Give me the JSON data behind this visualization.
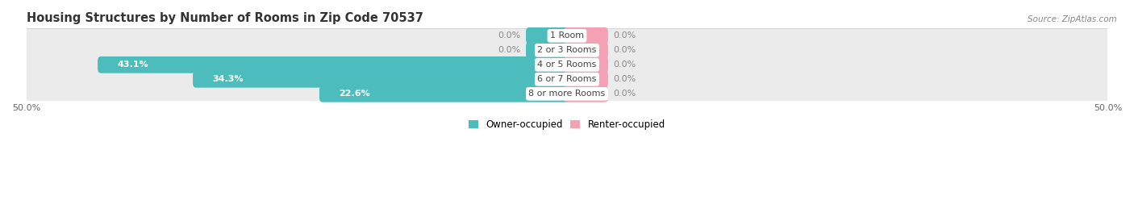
{
  "title": "Housing Structures by Number of Rooms in Zip Code 70537",
  "source": "Source: ZipAtlas.com",
  "categories": [
    "1 Room",
    "2 or 3 Rooms",
    "4 or 5 Rooms",
    "6 or 7 Rooms",
    "8 or more Rooms"
  ],
  "owner_values": [
    0.0,
    0.0,
    43.1,
    34.3,
    22.6
  ],
  "renter_values": [
    0.0,
    0.0,
    0.0,
    0.0,
    0.0
  ],
  "owner_color": "#4dbcbc",
  "renter_color": "#f4a0b5",
  "row_bg_color": "#ebebeb",
  "max_val": 50.0,
  "stub_size": 3.5,
  "title_fontsize": 10.5,
  "source_fontsize": 7.5,
  "legend_owner": "Owner-occupied",
  "legend_renter": "Renter-occupied"
}
